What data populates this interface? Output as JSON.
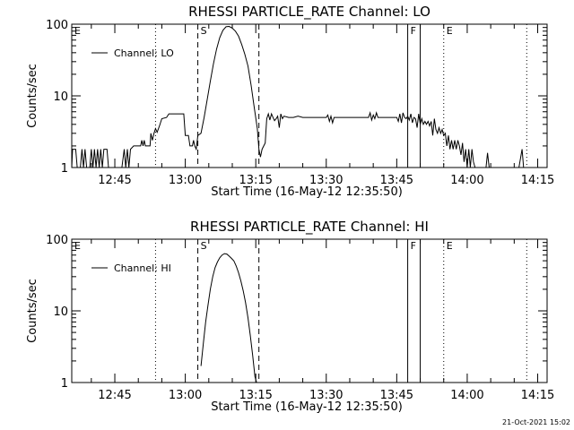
{
  "footer": "21-Oct-2021 15:02",
  "chart_data": [
    {
      "type": "line",
      "title": "RHESSI PARTICLE_RATE Channel: LO",
      "xlabel": "Start Time (16-May-12 12:35:50)",
      "ylabel": "Counts/sec",
      "yscale": "log",
      "ylim": [
        1,
        100
      ],
      "xlim": [
        "12:35:50",
        "14:17:00"
      ],
      "x_ticks": [
        "12:45",
        "13:00",
        "13:15",
        "13:30",
        "13:45",
        "14:00",
        "14:15"
      ],
      "y_ticks": [
        "1",
        "10",
        "100"
      ],
      "legend": {
        "label": "Channel: LO",
        "placement": "top-left"
      },
      "grid": false,
      "event_lines": [
        {
          "label": "E",
          "time": "12:35:50",
          "style": "dotted"
        },
        {
          "label": "",
          "time": "12:53:40",
          "style": "dotted"
        },
        {
          "label": "S",
          "time": "13:02:40",
          "style": "dashed"
        },
        {
          "label": "",
          "time": "13:15:40",
          "style": "dashed"
        },
        {
          "label": "F",
          "time": "13:47:20",
          "style": "solid"
        },
        {
          "label": "",
          "time": "13:50:00",
          "style": "solid"
        },
        {
          "label": "E",
          "time": "13:55:00",
          "style": "dotted"
        },
        {
          "label": "",
          "time": "14:12:40",
          "style": "dotted"
        }
      ],
      "series": [
        {
          "name": "Channel: LO",
          "points": [
            [
              "12:35:50",
              1
            ],
            [
              "12:36:00",
              1.8
            ],
            [
              "12:36:40",
              1.8
            ],
            [
              "12:37:00",
              1
            ],
            [
              "12:37:40",
              1
            ],
            [
              "12:38:00",
              1.8
            ],
            [
              "12:38:20",
              1
            ],
            [
              "12:38:40",
              1.8
            ],
            [
              "12:39:00",
              1
            ],
            [
              "12:39:40",
              1
            ],
            [
              "12:40:00",
              1.8
            ],
            [
              "12:40:20",
              1
            ],
            [
              "12:40:40",
              1.8
            ],
            [
              "12:41:00",
              1
            ],
            [
              "12:41:20",
              1.8
            ],
            [
              "12:41:40",
              1
            ],
            [
              "12:42:00",
              1.8
            ],
            [
              "12:42:20",
              1
            ],
            [
              "12:42:40",
              1.8
            ],
            [
              "12:43:20",
              1.8
            ],
            [
              "12:43:40",
              1
            ],
            [
              "12:45:00",
              1
            ],
            [
              "12:46:30",
              1
            ],
            [
              "12:47:00",
              1.8
            ],
            [
              "12:47:20",
              1
            ],
            [
              "12:47:40",
              1.8
            ],
            [
              "12:48:00",
              1
            ],
            [
              "12:48:20",
              1.8
            ],
            [
              "12:49:00",
              2
            ],
            [
              "12:50:30",
              2
            ],
            [
              "12:50:45",
              2.4
            ],
            [
              "12:51:00",
              2
            ],
            [
              "12:51:15",
              2.4
            ],
            [
              "12:51:30",
              2
            ],
            [
              "12:52:30",
              2
            ],
            [
              "12:52:40",
              3
            ],
            [
              "12:53:00",
              2.4
            ],
            [
              "12:53:20",
              3
            ],
            [
              "12:53:40",
              3.5
            ],
            [
              "12:54:00",
              3.1
            ],
            [
              "12:54:30",
              3.8
            ],
            [
              "12:55:00",
              4.8
            ],
            [
              "12:56:00",
              5
            ],
            [
              "12:56:30",
              5.6
            ],
            [
              "12:57:00",
              5.6
            ],
            [
              "12:58:00",
              5.6
            ],
            [
              "12:59:00",
              5.6
            ],
            [
              "12:59:40",
              5.6
            ],
            [
              "13:00:00",
              2.8
            ],
            [
              "13:00:40",
              2.8
            ],
            [
              "13:01:00",
              2
            ],
            [
              "13:01:30",
              2
            ],
            [
              "13:01:45",
              2.4
            ],
            [
              "13:02:00",
              2
            ],
            [
              "13:02:20",
              1.8
            ],
            [
              "13:02:40",
              2.8
            ],
            [
              "13:03:20",
              3
            ],
            [
              "13:04:00",
              5
            ],
            [
              "13:04:40",
              9
            ],
            [
              "13:05:20",
              16
            ],
            [
              "13:06:00",
              28
            ],
            [
              "13:06:40",
              45
            ],
            [
              "13:07:20",
              65
            ],
            [
              "13:08:00",
              82
            ],
            [
              "13:08:40",
              92
            ],
            [
              "13:09:20",
              93
            ],
            [
              "13:10:00",
              88
            ],
            [
              "13:10:40",
              80
            ],
            [
              "13:11:20",
              68
            ],
            [
              "13:12:00",
              52
            ],
            [
              "13:12:40",
              38
            ],
            [
              "13:13:20",
              26
            ],
            [
              "13:14:00",
              14
            ],
            [
              "13:14:40",
              7
            ],
            [
              "13:15:20",
              3.5
            ],
            [
              "13:15:40",
              1.8
            ],
            [
              "13:16:00",
              1.4
            ],
            [
              "13:16:20",
              1.8
            ],
            [
              "13:17:00",
              2.2
            ],
            [
              "13:17:20",
              4.8
            ],
            [
              "13:17:40",
              5.6
            ],
            [
              "13:18:00",
              4.6
            ],
            [
              "13:18:20",
              5.6
            ],
            [
              "13:18:40",
              5
            ],
            [
              "13:19:00",
              4.5
            ],
            [
              "13:19:20",
              4.8
            ],
            [
              "13:19:40",
              5.2
            ],
            [
              "13:20:00",
              3.6
            ],
            [
              "13:20:20",
              5.6
            ],
            [
              "13:20:40",
              4.8
            ],
            [
              "13:21:00",
              5.2
            ],
            [
              "13:22:00",
              5
            ],
            [
              "13:23:00",
              5
            ],
            [
              "13:24:00",
              5.2
            ],
            [
              "13:25:00",
              5
            ],
            [
              "13:26:00",
              5
            ],
            [
              "13:27:00",
              5
            ],
            [
              "13:28:00",
              5
            ],
            [
              "13:29:00",
              5
            ],
            [
              "13:30:00",
              5
            ],
            [
              "13:30:20",
              5.4
            ],
            [
              "13:30:40",
              4.4
            ],
            [
              "13:31:00",
              5.2
            ],
            [
              "13:31:20",
              4.2
            ],
            [
              "13:31:40",
              5
            ],
            [
              "13:32:00",
              5
            ],
            [
              "13:33:00",
              5
            ],
            [
              "13:34:00",
              5
            ],
            [
              "13:35:00",
              5
            ],
            [
              "13:36:00",
              5
            ],
            [
              "13:37:00",
              5
            ],
            [
              "13:38:00",
              5
            ],
            [
              "13:39:00",
              5
            ],
            [
              "13:39:20",
              5.8
            ],
            [
              "13:39:40",
              4.6
            ],
            [
              "13:40:00",
              5.4
            ],
            [
              "13:40:20",
              4.8
            ],
            [
              "13:40:40",
              5.8
            ],
            [
              "13:41:00",
              5
            ],
            [
              "13:42:00",
              5
            ],
            [
              "13:43:00",
              5
            ],
            [
              "13:44:00",
              5
            ],
            [
              "13:45:00",
              5
            ],
            [
              "13:45:20",
              4.4
            ],
            [
              "13:45:40",
              5.6
            ],
            [
              "13:46:00",
              4.2
            ],
            [
              "13:46:20",
              5.8
            ],
            [
              "13:46:40",
              5
            ],
            [
              "13:47:00",
              4.8
            ],
            [
              "13:47:20",
              5.2
            ],
            [
              "13:47:40",
              4.6
            ],
            [
              "13:48:00",
              5.6
            ],
            [
              "13:48:20",
              4.2
            ],
            [
              "13:48:40",
              5
            ],
            [
              "13:49:00",
              4.8
            ],
            [
              "13:49:20",
              3.6
            ],
            [
              "13:49:40",
              5.6
            ],
            [
              "13:50:00",
              4
            ],
            [
              "13:50:20",
              4.8
            ],
            [
              "13:50:40",
              4
            ],
            [
              "13:51:00",
              4.4
            ],
            [
              "13:51:20",
              4
            ],
            [
              "13:51:40",
              4.4
            ],
            [
              "13:52:00",
              3.8
            ],
            [
              "13:52:20",
              4.4
            ],
            [
              "13:52:40",
              2.8
            ],
            [
              "13:53:00",
              4.8
            ],
            [
              "13:53:20",
              3.4
            ],
            [
              "13:53:40",
              3
            ],
            [
              "13:54:00",
              3.6
            ],
            [
              "13:54:20",
              3
            ],
            [
              "13:54:40",
              3.4
            ],
            [
              "13:55:00",
              2.8
            ],
            [
              "13:55:20",
              3
            ],
            [
              "13:55:40",
              2
            ],
            [
              "13:56:00",
              2.8
            ],
            [
              "13:56:20",
              1.8
            ],
            [
              "13:56:40",
              2.4
            ],
            [
              "13:57:00",
              1.8
            ],
            [
              "13:57:20",
              2.4
            ],
            [
              "13:57:40",
              1.8
            ],
            [
              "13:58:00",
              2.4
            ],
            [
              "13:58:20",
              2
            ],
            [
              "13:58:40",
              1.5
            ],
            [
              "13:59:00",
              2.2
            ],
            [
              "13:59:20",
              1.2
            ],
            [
              "13:59:40",
              1.8
            ],
            [
              "14:00:00",
              1
            ],
            [
              "14:00:20",
              1.8
            ],
            [
              "14:00:40",
              1
            ],
            [
              "14:01:00",
              1.8
            ],
            [
              "14:01:20",
              1.2
            ],
            [
              "14:01:40",
              1
            ],
            [
              "14:04:00",
              1
            ],
            [
              "14:04:20",
              1.6
            ],
            [
              "14:04:40",
              1
            ],
            [
              "14:11:00",
              1
            ],
            [
              "14:11:40",
              1.8
            ],
            [
              "14:12:00",
              1
            ]
          ]
        }
      ]
    },
    {
      "type": "line",
      "title": "RHESSI PARTICLE_RATE Channel: HI",
      "xlabel": "Start Time (16-May-12 12:35:50)",
      "ylabel": "Counts/sec",
      "yscale": "log",
      "ylim": [
        1,
        100
      ],
      "xlim": [
        "12:35:50",
        "14:17:00"
      ],
      "x_ticks": [
        "12:45",
        "13:00",
        "13:15",
        "13:30",
        "13:45",
        "14:00",
        "14:15"
      ],
      "y_ticks": [
        "1",
        "10",
        "100"
      ],
      "legend": {
        "label": "Channel: HI",
        "placement": "top-left"
      },
      "grid": false,
      "event_lines": [
        {
          "label": "E",
          "time": "12:35:50",
          "style": "dotted"
        },
        {
          "label": "",
          "time": "12:53:40",
          "style": "dotted"
        },
        {
          "label": "S",
          "time": "13:02:40",
          "style": "dashed"
        },
        {
          "label": "",
          "time": "13:15:40",
          "style": "dashed"
        },
        {
          "label": "F",
          "time": "13:47:20",
          "style": "solid"
        },
        {
          "label": "",
          "time": "13:50:00",
          "style": "solid"
        },
        {
          "label": "E",
          "time": "13:55:00",
          "style": "dotted"
        },
        {
          "label": "",
          "time": "14:12:40",
          "style": "dotted"
        }
      ],
      "series": [
        {
          "name": "Channel: HI",
          "points": [
            [
              "13:03:20",
              1.7
            ],
            [
              "13:03:50",
              3.5
            ],
            [
              "13:04:20",
              7
            ],
            [
              "13:04:50",
              12
            ],
            [
              "13:05:20",
              20
            ],
            [
              "13:05:50",
              30
            ],
            [
              "13:06:20",
              40
            ],
            [
              "13:06:50",
              48
            ],
            [
              "13:07:20",
              55
            ],
            [
              "13:07:50",
              60
            ],
            [
              "13:08:20",
              63
            ],
            [
              "13:08:50",
              62
            ],
            [
              "13:09:20",
              58
            ],
            [
              "13:09:50",
              54
            ],
            [
              "13:10:20",
              50
            ],
            [
              "13:10:50",
              42
            ],
            [
              "13:11:20",
              34
            ],
            [
              "13:11:50",
              26
            ],
            [
              "13:12:20",
              19
            ],
            [
              "13:12:50",
              13
            ],
            [
              "13:13:20",
              8
            ],
            [
              "13:13:50",
              4.5
            ],
            [
              "13:14:20",
              2.4
            ],
            [
              "13:14:50",
              1.2
            ],
            [
              "13:15:10",
              1
            ]
          ]
        }
      ]
    }
  ]
}
